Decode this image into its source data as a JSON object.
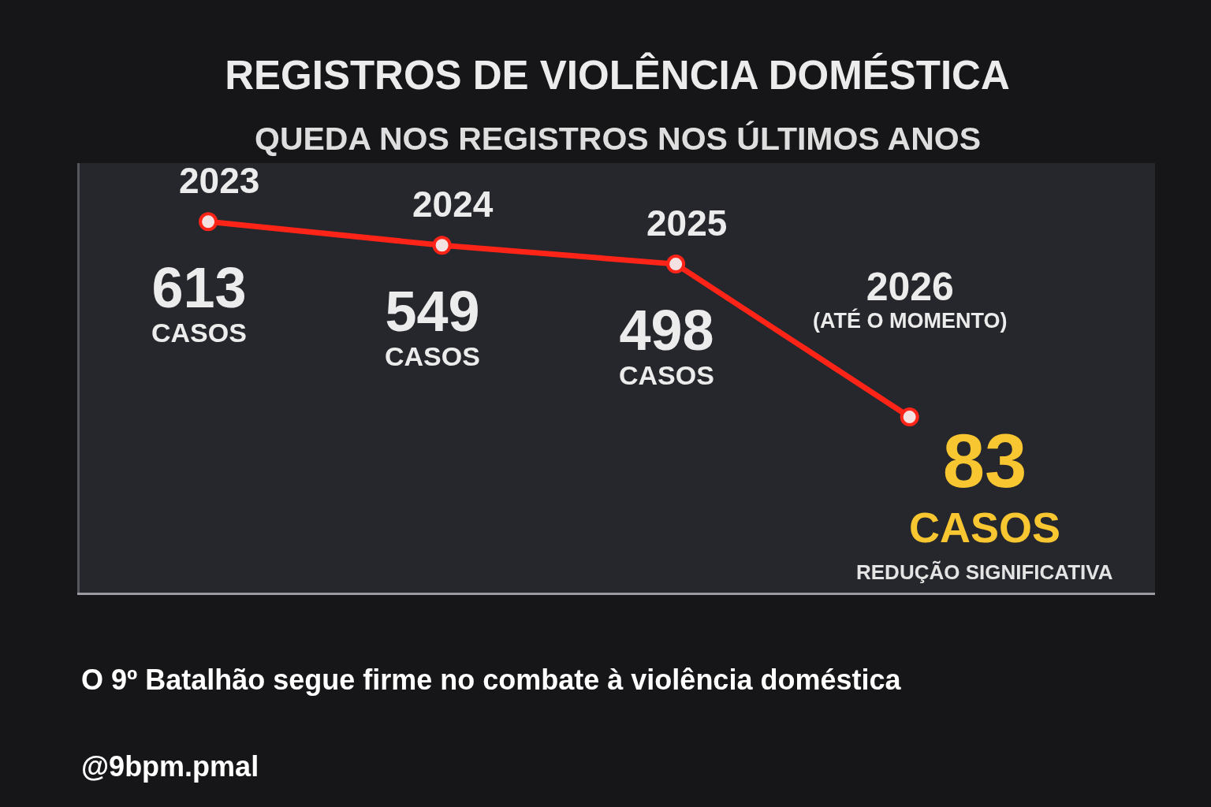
{
  "chart_data": {
    "type": "line",
    "title": "REGISTROS DE VIOLÊNCIA DOMÉSTICA",
    "subtitle": "QUEDA NOS REGISTROS NOS ÚLTIMOS ANOS",
    "categories": [
      "2023",
      "2024",
      "2025",
      "2026 (ATÉ O MOMENTO)"
    ],
    "values": [
      613,
      549,
      498,
      83
    ],
    "color": "#ff2418",
    "value_labels": [
      "613 CASOS",
      "549 CASOS",
      "498 CASOS",
      "83 CASOS"
    ],
    "marker": "circle",
    "line_style": "solid",
    "tick_labels": false,
    "annotations": [
      "REDUÇÃO SIGNIFICATIVA",
      "O 9º Batalhão segue firme no combate à violência doméstica",
      "@9bpm.pmal"
    ]
  }
}
